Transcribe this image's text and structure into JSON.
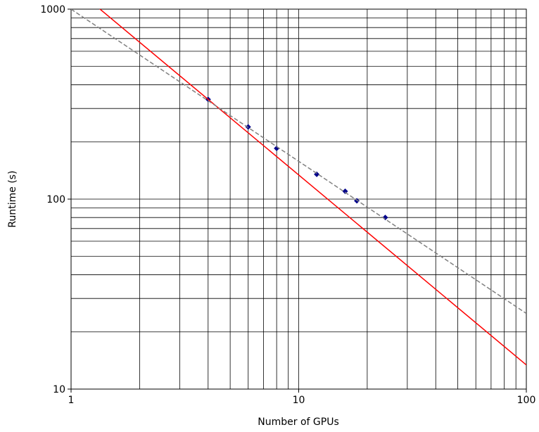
{
  "chart_data": {
    "type": "scatter",
    "xlabel": "Number of GPUs",
    "ylabel": "Runtime (s)",
    "xscale": "log",
    "yscale": "log",
    "grid": true,
    "minor_grid": true,
    "xlim": [
      1,
      100
    ],
    "ylim": [
      10,
      1000
    ],
    "xticks": [
      1,
      10,
      100
    ],
    "yticks": [
      10,
      100,
      1000
    ],
    "series": [
      {
        "kind": "points",
        "color": "#00008b",
        "x": [
          4,
          6,
          8,
          12,
          16,
          18,
          24
        ],
        "values": [
          335,
          240,
          185,
          135,
          110,
          98,
          80
        ]
      },
      {
        "kind": "line",
        "color": "#ff0000",
        "x": [
          1,
          100
        ],
        "values": [
          1340,
          13.4
        ]
      },
      {
        "kind": "dashed-line",
        "color": "#808080",
        "x": [
          1,
          100
        ],
        "values": [
          1000,
          25
        ]
      }
    ]
  }
}
